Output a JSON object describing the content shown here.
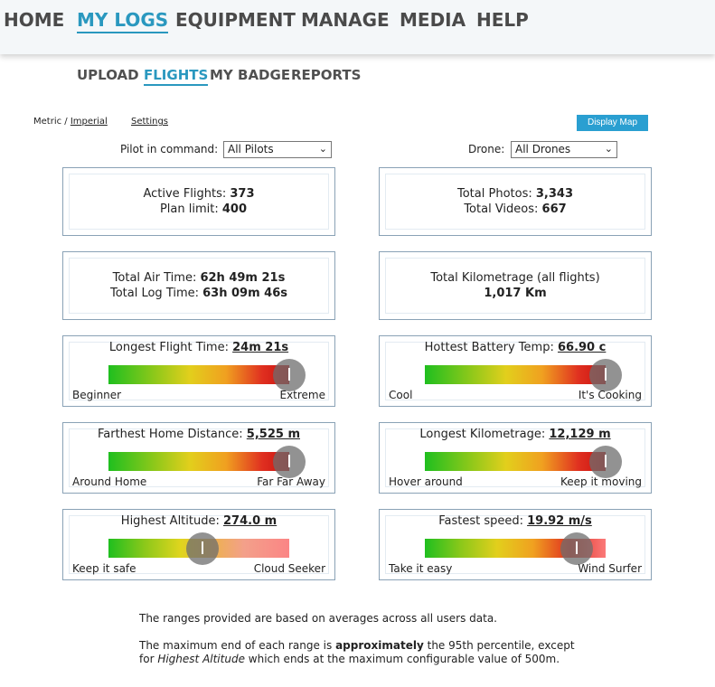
{
  "nav": [
    "HOME",
    "MY LOGS",
    "EQUIPMENT",
    "MANAGE",
    "MEDIA",
    "HELP"
  ],
  "subnav": [
    "UPLOAD",
    "FLIGHTS",
    "MY BADGE",
    "REPORTS"
  ],
  "units": {
    "metric": "Metric",
    "sep": " / ",
    "imperial": "Imperial"
  },
  "settings_label": "Settings",
  "display_map_label": "Display Map",
  "filters": {
    "pilot_label": "Pilot in command:",
    "pilot_value": "All Pilots",
    "drone_label": "Drone:",
    "drone_value": "All Drones"
  },
  "stats": {
    "active_flights_label": "Active Flights: ",
    "active_flights": "373",
    "plan_limit_label": "Plan limit: ",
    "plan_limit": "400",
    "total_photos_label": "Total Photos: ",
    "total_photos": "3,343",
    "total_videos_label": "Total Videos: ",
    "total_videos": "667",
    "air_time_label": "Total Air Time: ",
    "air_time": "62h 49m 21s",
    "log_time_label": "Total Log Time: ",
    "log_time": "63h 09m 46s",
    "km_label": "Total Kilometrage (all flights)",
    "km_value": "1,017 Km"
  },
  "ranges": [
    {
      "title": "Longest Flight Time: ",
      "value": "24m 21s",
      "left": "Beginner",
      "right": "Extreme",
      "level": 1.0
    },
    {
      "title": "Hottest Battery Temp: ",
      "value": "66.90 c",
      "left": "Cool",
      "right": "It's Cooking",
      "level": 1.0
    },
    {
      "title": "Farthest Home Distance: ",
      "value": "5,525 m",
      "left": "Around Home",
      "right": "Far Far Away",
      "level": 1.0
    },
    {
      "title": "Longest Kilometrage: ",
      "value": "12,129 m",
      "left": "Hover around",
      "right": "Keep it moving",
      "level": 1.0
    },
    {
      "title": "Highest Altitude: ",
      "value": "274.0 m",
      "left": "Keep it safe",
      "right": "Cloud Seeker",
      "level": 0.52
    },
    {
      "title": "Fastest speed: ",
      "value": "19.92 m/s",
      "left": "Take it easy",
      "right": "Wind Surfer",
      "level": 0.84
    }
  ],
  "notes": {
    "line1": "The ranges provided are based on averages across all users data.",
    "line2_pre": "The maximum end of each range is ",
    "line2_bold": "approximately",
    "line2_post": " the 95th percentile, except",
    "line3_pre": "for ",
    "line3_italic": "Highest Altitude",
    "line3_post": " which ends at the maximum configurable value of 500m."
  }
}
